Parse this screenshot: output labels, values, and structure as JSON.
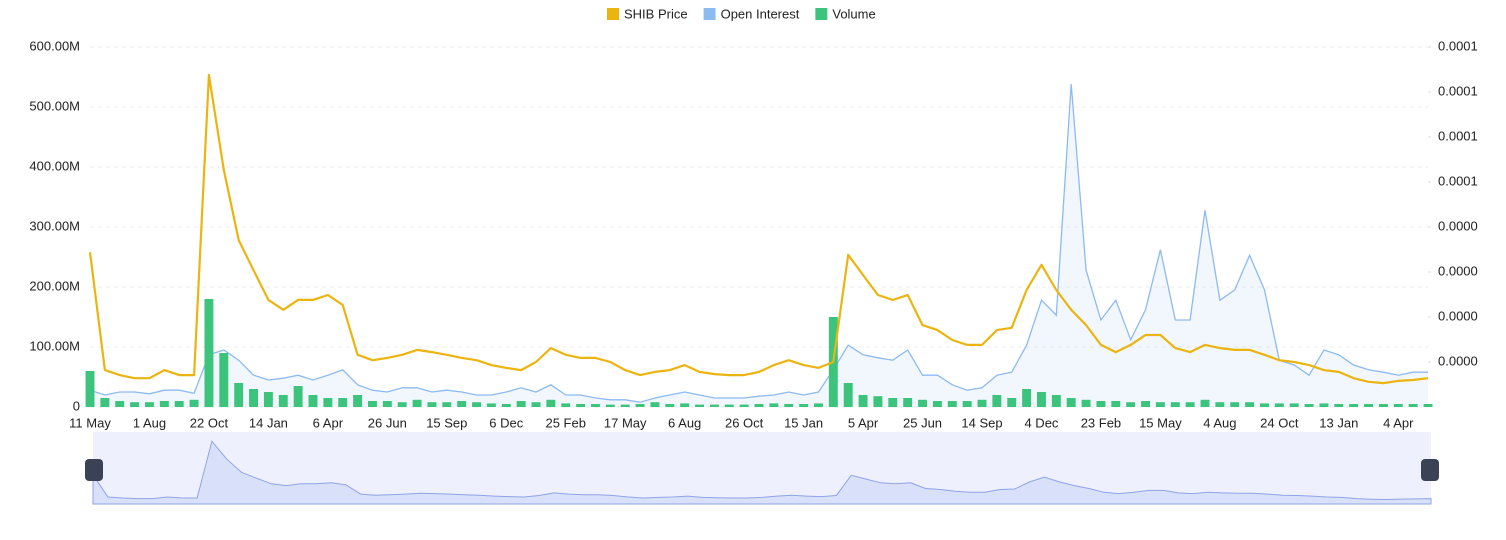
{
  "chart_data": {
    "type": "line",
    "categories": [
      "11 May",
      null,
      null,
      null,
      "1 Aug",
      null,
      null,
      null,
      "22 Oct",
      null,
      null,
      null,
      "14 Jan",
      null,
      null,
      null,
      "6 Apr",
      null,
      null,
      null,
      "26 Jun",
      null,
      null,
      null,
      "15 Sep",
      null,
      null,
      null,
      "6 Dec",
      null,
      null,
      null,
      "25 Feb",
      null,
      null,
      null,
      "17 May",
      null,
      null,
      null,
      "6 Aug",
      null,
      null,
      null,
      "26 Oct",
      null,
      null,
      null,
      "15 Jan",
      null,
      null,
      null,
      "5 Apr",
      null,
      null,
      null,
      "25 Jun",
      null,
      null,
      null,
      "14 Sep",
      null,
      null,
      null,
      "4 Dec",
      null,
      null,
      null,
      "23 Feb",
      null,
      null,
      null,
      "15 May",
      null,
      null,
      null,
      "4 Aug",
      null,
      null,
      null,
      "24 Oct",
      null,
      null,
      null,
      "13 Jan",
      null,
      null,
      null,
      "4 Apr",
      null,
      null
    ],
    "series": [
      {
        "name": "SHIB Price",
        "type": "line",
        "axis": "y2",
        "color": "#ebb40f",
        "values": [
          3.44e-05,
          8.2e-06,
          7.1e-06,
          6.4e-06,
          6.4e-06,
          8.2e-06,
          7.1e-06,
          7.1e-06,
          7.38e-05,
          5.27e-05,
          3.71e-05,
          3.04e-05,
          2.38e-05,
          2.16e-05,
          2.38e-05,
          2.38e-05,
          2.49e-05,
          2.27e-05,
          1.16e-05,
          1.04e-05,
          1.09e-05,
          1.16e-05,
          1.27e-05,
          1.22e-05,
          1.16e-05,
          1.09e-05,
          1.04e-05,
          9.3e-06,
          8.7e-06,
          8.2e-06,
          1e-05,
          1.31e-05,
          1.16e-05,
          1.09e-05,
          1.09e-05,
          1e-05,
          8.2e-06,
          7.1e-06,
          7.8e-06,
          8.2e-06,
          9.3e-06,
          7.8e-06,
          7.3e-06,
          7.1e-06,
          7.1e-06,
          7.8e-06,
          9.3e-06,
          1.04e-05,
          9.3e-06,
          8.7e-06,
          1e-05,
          3.38e-05,
          2.93e-05,
          2.49e-05,
          2.38e-05,
          2.49e-05,
          1.82e-05,
          1.71e-05,
          1.49e-05,
          1.38e-05,
          1.38e-05,
          1.71e-05,
          1.76e-05,
          2.6e-05,
          3.16e-05,
          2.6e-05,
          2.16e-05,
          1.82e-05,
          1.38e-05,
          1.22e-05,
          1.38e-05,
          1.6e-05,
          1.6e-05,
          1.31e-05,
          1.22e-05,
          1.38e-05,
          1.31e-05,
          1.27e-05,
          1.27e-05,
          1.16e-05,
          1.04e-05,
          1e-05,
          9.3e-06,
          8.2e-06,
          7.8e-06,
          6.4e-06,
          5.6e-06,
          5.3e-06,
          5.8e-06,
          6e-06,
          6.4e-06
        ]
      },
      {
        "name": "Open Interest",
        "type": "area",
        "color": "#8dbaf0",
        "values": [
          28000000.0,
          20000000.0,
          25000000.0,
          25000000.0,
          22000000.0,
          28000000.0,
          28000000.0,
          23000000.0,
          87000000.0,
          95000000.0,
          78000000.0,
          53000000.0,
          45000000.0,
          48000000.0,
          53000000.0,
          45000000.0,
          53000000.0,
          62000000.0,
          37000000.0,
          28000000.0,
          25000000.0,
          32000000.0,
          32000000.0,
          25000000.0,
          28000000.0,
          25000000.0,
          20000000.0,
          20000000.0,
          25000000.0,
          32000000.0,
          25000000.0,
          37000000.0,
          20000000.0,
          20000000.0,
          15000000.0,
          12000000.0,
          12000000.0,
          8000000.0,
          15000000.0,
          20000000.0,
          25000000.0,
          20000000.0,
          15000000.0,
          15000000.0,
          15000000.0,
          18000000.0,
          20000000.0,
          25000000.0,
          20000000.0,
          25000000.0,
          62000000.0,
          103000000.0,
          87000000.0,
          82000000.0,
          78000000.0,
          95000000.0,
          53000000.0,
          53000000.0,
          37000000.0,
          28000000.0,
          32000000.0,
          53000000.0,
          58000000.0,
          103000000.0,
          178000000.0,
          153000000.0,
          538000000.0,
          228000000.0,
          145000000.0,
          178000000.0,
          112000000.0,
          162000000.0,
          262000000.0,
          145000000.0,
          145000000.0,
          328000000.0,
          178000000.0,
          195000000.0,
          253000000.0,
          195000000.0,
          78000000.0,
          70000000.0,
          53000000.0,
          95000000.0,
          87000000.0,
          70000000.0,
          62000000.0,
          58000000.0,
          53000000.0,
          58000000.0,
          58000000.0
        ]
      },
      {
        "name": "Volume",
        "type": "bar",
        "color": "#3cc47c",
        "values": [
          60000000.0,
          15000000.0,
          10000000.0,
          8000000.0,
          8000000.0,
          10000000.0,
          10000000.0,
          12000000.0,
          180000000.0,
          90000000.0,
          40000000.0,
          30000000.0,
          25000000.0,
          20000000.0,
          35000000.0,
          20000000.0,
          15000000.0,
          15000000.0,
          20000000.0,
          10000000.0,
          10000000.0,
          8000000.0,
          12000000.0,
          8000000.0,
          8000000.0,
          10000000.0,
          8000000.0,
          6000000.0,
          5000000.0,
          10000000.0,
          8000000.0,
          12000000.0,
          6000000.0,
          5000000.0,
          5000000.0,
          4000000.0,
          4000000.0,
          5000000.0,
          8000000.0,
          5000000.0,
          6000000.0,
          4000000.0,
          4000000.0,
          4000000.0,
          4000000.0,
          5000000.0,
          6000000.0,
          5000000.0,
          5000000.0,
          6000000.0,
          150000000.0,
          40000000.0,
          20000000.0,
          18000000.0,
          15000000.0,
          15000000.0,
          12000000.0,
          10000000.0,
          10000000.0,
          10000000.0,
          12000000.0,
          20000000.0,
          15000000.0,
          30000000.0,
          25000000.0,
          20000000.0,
          15000000.0,
          12000000.0,
          10000000.0,
          10000000.0,
          8000000.0,
          10000000.0,
          8000000.0,
          8000000.0,
          8000000.0,
          12000000.0,
          8000000.0,
          8000000.0,
          8000000.0,
          6000000.0,
          6000000.0,
          6000000.0,
          5000000.0,
          6000000.0,
          5000000.0,
          5000000.0,
          5000000.0,
          5000000.0,
          5000000.0,
          5000000.0,
          5000000.0
        ]
      }
    ],
    "ylim": [
      0,
      600000000
    ],
    "yticks": [
      0,
      {
        "value": 100000000,
        "label": "100.00M"
      },
      {
        "value": 200000000,
        "label": "200.00M"
      },
      {
        "value": 300000000,
        "label": "300.00M"
      },
      {
        "value": 400000000,
        "label": "400.00M"
      },
      {
        "value": 500000000,
        "label": "500.00M"
      },
      {
        "value": 600000000,
        "label": "600.00M"
      }
    ],
    "y2lim": [
      0,
      8e-05
    ],
    "y2ticks": [
      {
        "value": 1e-05,
        "label": "0.0000"
      },
      {
        "value": 2e-05,
        "label": "0.0000"
      },
      {
        "value": 3e-05,
        "label": "0.0000"
      },
      {
        "value": 4e-05,
        "label": "0.0000"
      },
      {
        "value": 5e-05,
        "label": "0.0001"
      },
      {
        "value": 6e-05,
        "label": "0.0001"
      },
      {
        "value": 7e-05,
        "label": "0.0001"
      },
      {
        "value": 8e-05,
        "label": "0.0001"
      }
    ],
    "grid": true,
    "legend": "top"
  }
}
